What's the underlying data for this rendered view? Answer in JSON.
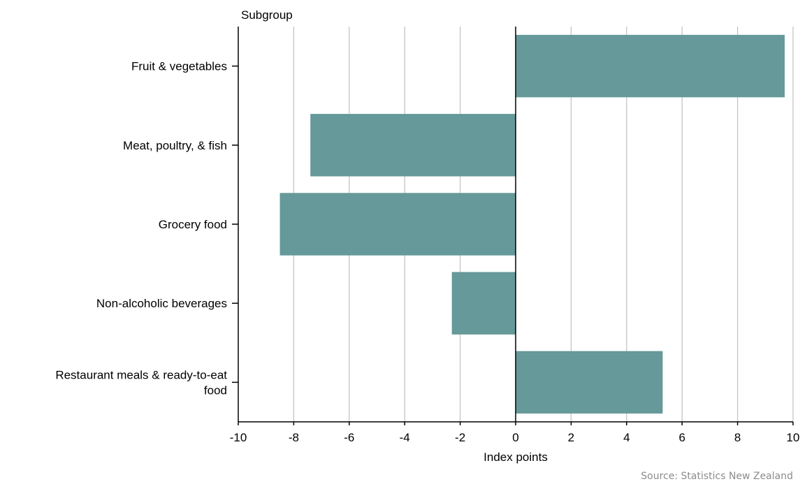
{
  "chart_data": {
    "type": "bar",
    "orientation": "horizontal",
    "categories": [
      [
        "Fruit & vegetables"
      ],
      [
        "Meat, poultry, & fish"
      ],
      [
        "Grocery food"
      ],
      [
        "Non-alcoholic beverages"
      ],
      [
        "Restaurant meals & ready-to-eat",
        "food"
      ]
    ],
    "values": [
      9.7,
      -7.4,
      -8.5,
      -2.3,
      5.3
    ],
    "category_axis_title": "Subgroup",
    "xlabel": "Index points",
    "xlim": [
      -10,
      10
    ],
    "xticks": [
      -10,
      -8,
      -6,
      -4,
      -2,
      0,
      2,
      4,
      6,
      8,
      10
    ],
    "grid": true,
    "legend": "none",
    "bar_color": "#669999",
    "source": "Source: Statistics New Zealand"
  }
}
